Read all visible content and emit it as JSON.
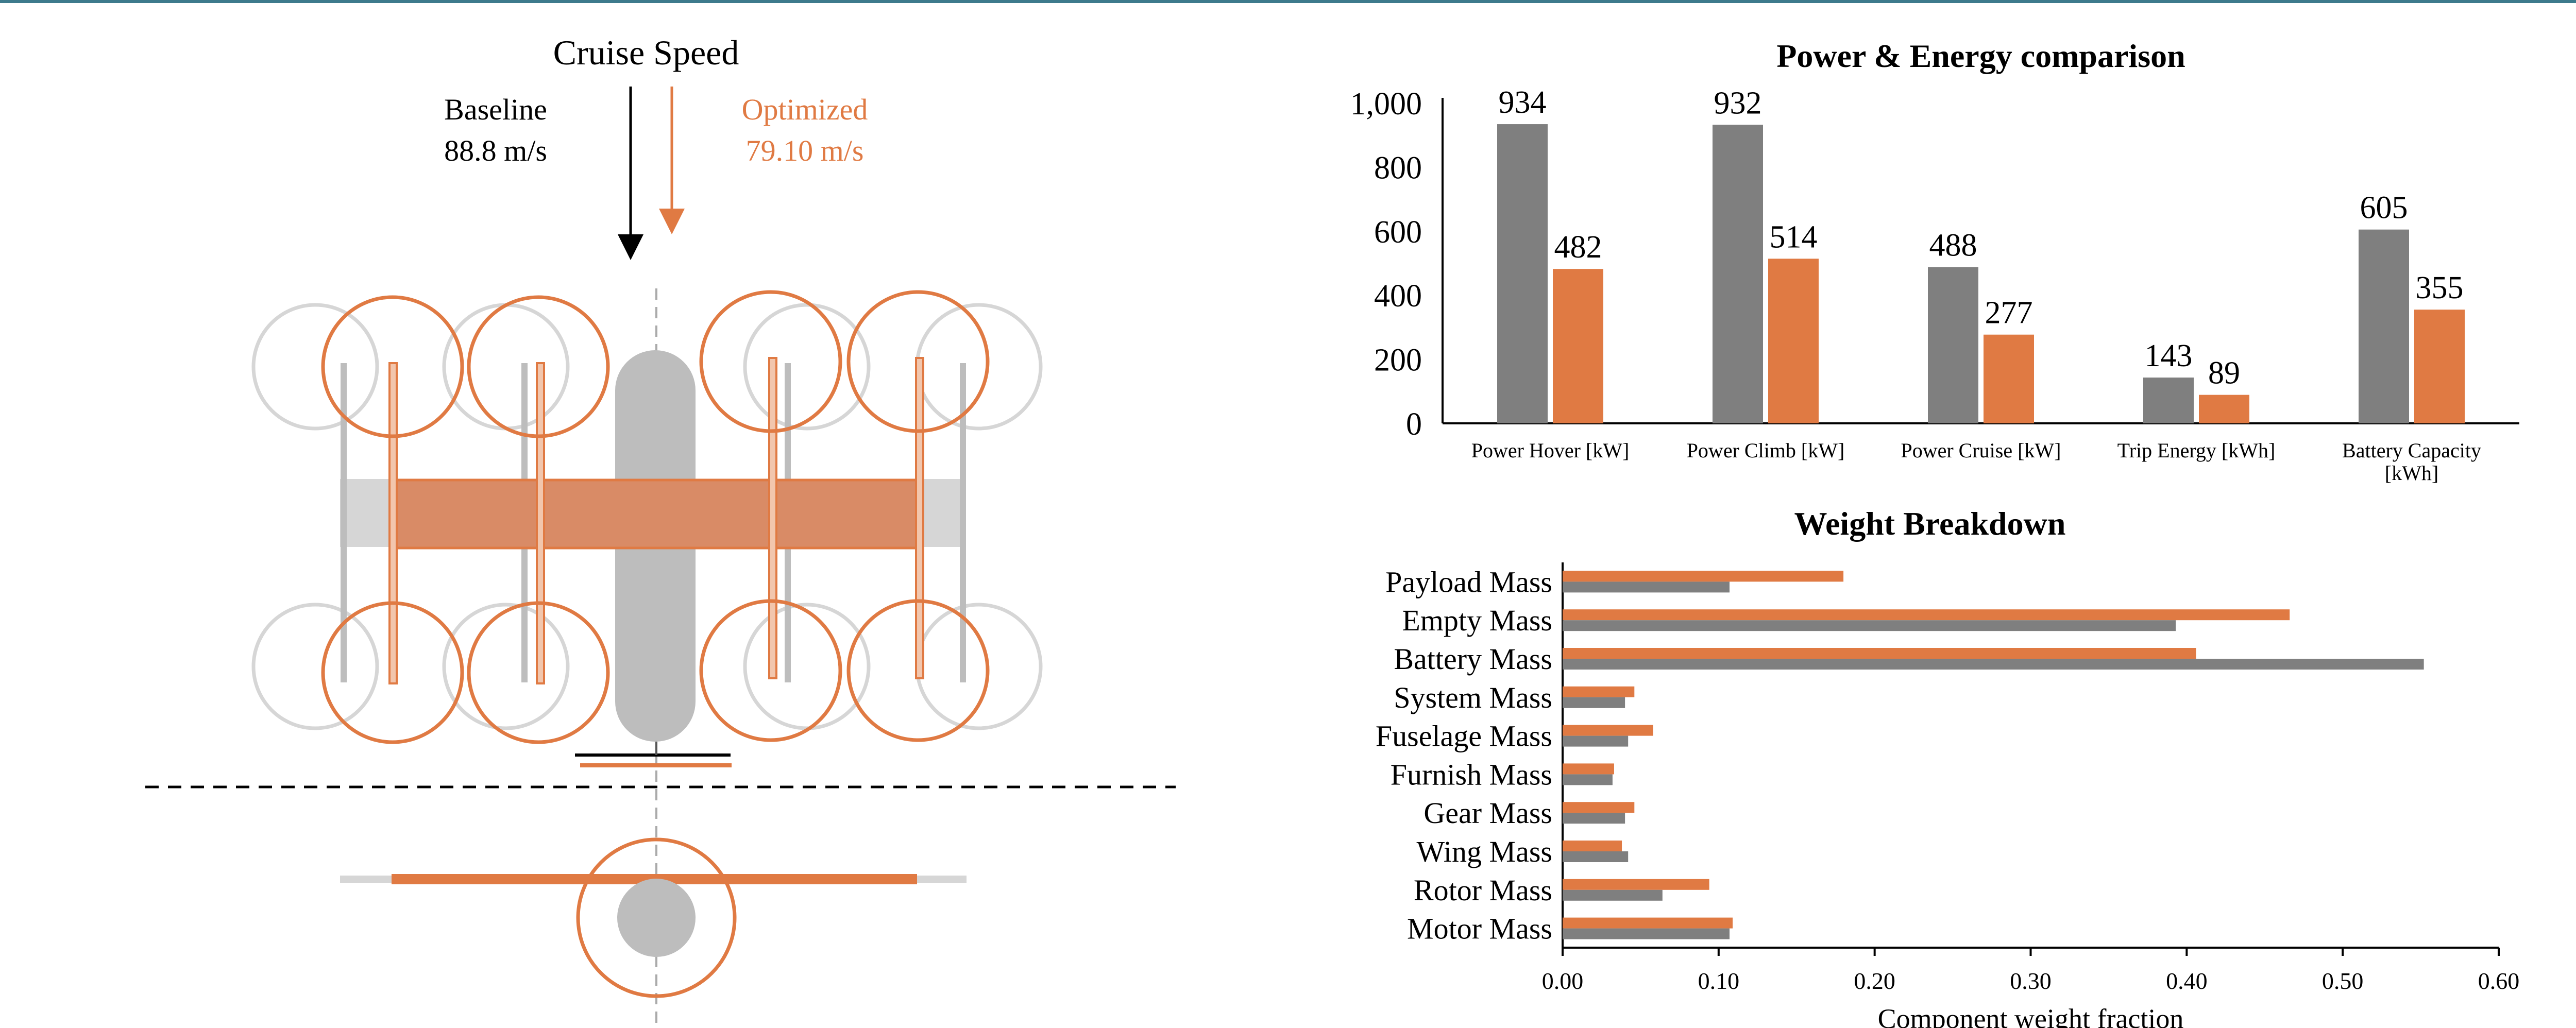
{
  "diagram": {
    "cruise_title": "Cruise Speed",
    "baseline_label": "Baseline",
    "baseline_value": "88.8 m/s",
    "optimized_label": "Optimized",
    "optimized_value": "79.10 m/s"
  },
  "colors": {
    "baseline": "#7f7f7f",
    "optimized": "#e07a43",
    "accent_rule": "#3d7a8c",
    "light_gray": "#d6d6d6",
    "body_gray": "#bdbdbd",
    "orange_fill": "#d98b66"
  },
  "chart_data": [
    {
      "type": "bar",
      "title": "Power & Energy comparison",
      "categories": [
        "Power Hover [kW]",
        "Power Climb [kW]",
        "Power Cruise [kW]",
        "Trip Energy [kWh]",
        "Battery Capacity [kWh]"
      ],
      "category_lines": [
        [
          "Power Hover [kW]"
        ],
        [
          "Power Climb [kW]"
        ],
        [
          "Power Cruise [kW]"
        ],
        [
          "Trip Energy [kWh]"
        ],
        [
          "Battery Capacity",
          "[kWh]"
        ]
      ],
      "series": [
        {
          "name": "Baseline",
          "values": [
            934,
            932,
            488,
            143,
            605
          ],
          "labels": [
            "934",
            "932",
            "488",
            "143",
            "605"
          ]
        },
        {
          "name": "Optimized",
          "values": [
            482,
            514,
            277,
            89,
            355
          ],
          "labels": [
            "482",
            "514",
            "277",
            "89",
            "355"
          ]
        }
      ],
      "ylim": [
        0,
        1000
      ],
      "yticks": [
        0,
        200,
        400,
        600,
        800,
        1000
      ],
      "ytick_labels": [
        "0",
        "200",
        "400",
        "600",
        "800",
        "1,000"
      ],
      "xlabel": "",
      "ylabel": "",
      "grid": false
    },
    {
      "type": "barh",
      "title": "Weight Breakdown",
      "categories": [
        "Payload Mass",
        "Empty Mass",
        "Battery Mass",
        "System Mass",
        "Fuselage Mass",
        "Furnish Mass",
        "Gear Mass",
        "Wing Mass",
        "Rotor Mass",
        "Motor Mass"
      ],
      "series": [
        {
          "name": "Baseline",
          "values": [
            0.107,
            0.393,
            0.552,
            0.04,
            0.042,
            0.032,
            0.04,
            0.042,
            0.064,
            0.107
          ]
        },
        {
          "name": "Optimized",
          "values": [
            0.18,
            0.466,
            0.406,
            0.046,
            0.058,
            0.033,
            0.046,
            0.038,
            0.094,
            0.109
          ]
        }
      ],
      "xlim": [
        0,
        0.6
      ],
      "xticks": [
        0,
        0.1,
        0.2,
        0.3,
        0.4,
        0.5,
        0.6
      ],
      "xtick_labels": [
        "0.00",
        "0.10",
        "0.20",
        "0.30",
        "0.40",
        "0.50",
        "0.60"
      ],
      "xlabel": "Component weight fraction",
      "ylabel": "",
      "grid": false
    }
  ]
}
